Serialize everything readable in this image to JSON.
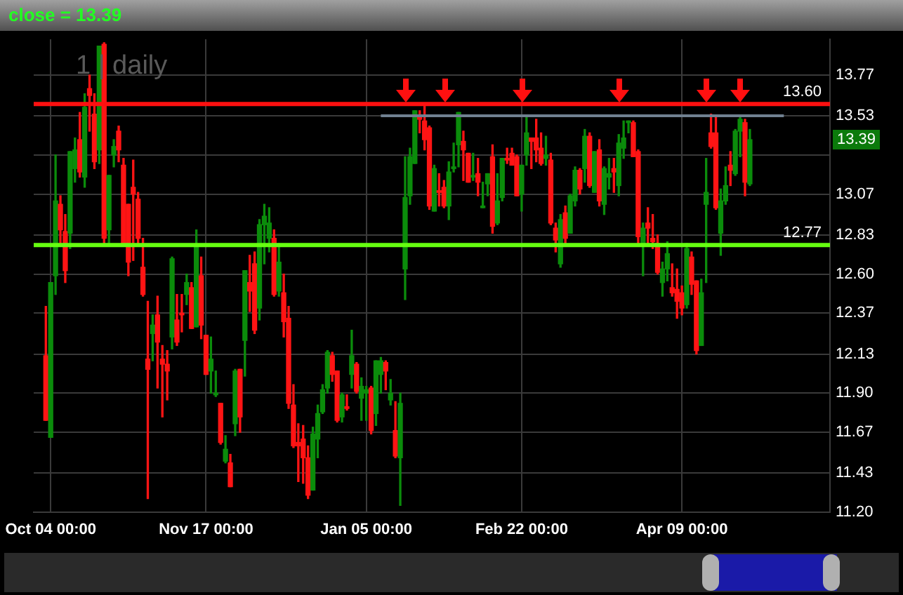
{
  "chart_data": {
    "type": "candlestick",
    "title": "close = 13.39",
    "annotations": [
      "1 | daily",
      {
        "text": "13.39",
        "y": 13.39
      }
    ],
    "categories": [
      null,
      null,
      null,
      "Oct 04 00:00",
      null,
      null,
      null,
      null,
      null,
      null,
      null,
      null,
      null,
      null,
      null,
      null,
      null,
      null,
      null,
      null,
      null,
      null,
      null,
      null,
      null,
      null,
      null,
      null,
      null,
      null,
      null,
      null,
      null,
      null,
      null,
      "Nov 17 00:00",
      null,
      null,
      null,
      null,
      null,
      null,
      null,
      null,
      null,
      null,
      null,
      null,
      null,
      null,
      null,
      null,
      null,
      null,
      null,
      null,
      null,
      null,
      null,
      null,
      null,
      null,
      null,
      null,
      null,
      null,
      null,
      null,
      "Jan 05 00:00",
      null,
      null,
      null,
      null,
      null,
      null,
      null,
      null,
      null,
      null,
      null,
      null,
      null,
      null,
      null,
      null,
      null,
      null,
      null,
      null,
      null,
      null,
      null,
      null,
      null,
      null,
      null,
      null,
      null,
      null,
      null,
      "Feb 22 00:00",
      null,
      null,
      null,
      null,
      null,
      null,
      null,
      null,
      null,
      null,
      null,
      null,
      null,
      null,
      null,
      null,
      null,
      null,
      null,
      null,
      null,
      null,
      null,
      null,
      null,
      null,
      null,
      null,
      null,
      null,
      null,
      null,
      "Apr 09 00:00",
      null,
      null,
      null,
      null,
      null,
      null,
      null,
      null,
      null,
      null,
      null,
      null,
      null,
      null,
      null,
      null,
      null,
      null,
      null,
      null,
      null,
      null,
      null,
      null,
      null,
      null,
      null,
      null,
      null,
      null
    ],
    "ohlc": [
      null,
      null,
      [
        12.12,
        12.41,
        11.74,
        11.74
      ],
      [
        11.64,
        12.55,
        11.64,
        12.55
      ],
      [
        12.59,
        13.3,
        12.48,
        13.03
      ],
      [
        13.01,
        13.06,
        12.78,
        12.86
      ],
      [
        12.85,
        12.95,
        12.55,
        12.62
      ],
      [
        12.84,
        13.32,
        12.75,
        13.32
      ],
      [
        13.22,
        13.4,
        13.14,
        13.33
      ],
      [
        13.39,
        13.55,
        13.17,
        13.2
      ],
      [
        13.17,
        13.66,
        13.11,
        13.58
      ],
      [
        13.69,
        13.77,
        13.44,
        13.65
      ],
      [
        13.54,
        13.66,
        13.22,
        13.26
      ],
      [
        13.33,
        13.94,
        13.25,
        13.94
      ],
      [
        13.95,
        13.96,
        12.78,
        12.81
      ],
      [
        12.86,
        13.18,
        12.78,
        13.18
      ],
      [
        13.3,
        13.39,
        13.23,
        13.35
      ],
      [
        13.44,
        13.47,
        13.26,
        13.33
      ],
      [
        13.24,
        13.28,
        12.78,
        12.78
      ],
      [
        13.01,
        13.01,
        12.59,
        12.67
      ],
      [
        13.11,
        13.27,
        12.68,
        13.07
      ],
      [
        13.04,
        13.08,
        12.78,
        12.81
      ],
      [
        12.64,
        12.81,
        12.47,
        12.48
      ],
      [
        12.1,
        12.44,
        11.28,
        12.04
      ],
      [
        12.25,
        12.36,
        12.09,
        12.3
      ],
      [
        12.36,
        12.47,
        11.93,
        12.2
      ],
      [
        12.1,
        12.18,
        11.76,
        12.07
      ],
      [
        12.07,
        12.15,
        11.86,
        12.03
      ],
      [
        12.23,
        12.7,
        12.16,
        12.69
      ],
      [
        12.33,
        12.48,
        12.18,
        12.2
      ],
      [
        12.37,
        12.48,
        12.26,
        12.36
      ],
      [
        12.48,
        12.6,
        12.42,
        12.55
      ],
      [
        12.52,
        12.55,
        12.28,
        12.28
      ],
      [
        12.29,
        12.86,
        12.29,
        12.76
      ],
      [
        12.59,
        12.7,
        12.22,
        12.3
      ],
      [
        12.24,
        12.24,
        12.01,
        12.01
      ],
      [
        12.03,
        12.23,
        11.9,
        12.1
      ],
      [
        11.89,
        12.03,
        11.88,
        11.9
      ],
      [
        11.84,
        11.84,
        11.6,
        11.61
      ],
      [
        11.5,
        11.65,
        11.49,
        11.57
      ],
      [
        11.49,
        11.54,
        11.35,
        11.35
      ],
      [
        11.72,
        12.04,
        11.65,
        12.03
      ],
      [
        12.04,
        12.04,
        11.67,
        11.76
      ],
      [
        12.21,
        12.62,
        12.0,
        12.62
      ],
      [
        12.55,
        12.71,
        12.38,
        12.5
      ],
      [
        12.66,
        12.73,
        12.25,
        12.27
      ],
      [
        12.4,
        12.92,
        12.33,
        12.89
      ],
      [
        12.89,
        13.01,
        12.66,
        12.94
      ],
      [
        12.81,
        12.99,
        12.73,
        12.9
      ],
      [
        12.81,
        12.86,
        12.47,
        12.48
      ],
      [
        12.5,
        12.78,
        12.47,
        12.67
      ],
      [
        12.49,
        12.6,
        12.23,
        12.32
      ],
      [
        12.34,
        12.41,
        11.81,
        11.84
      ],
      [
        11.83,
        11.95,
        11.58,
        11.59
      ],
      [
        11.61,
        11.72,
        11.38,
        11.59
      ],
      [
        11.63,
        11.71,
        11.37,
        11.52
      ],
      [
        11.52,
        11.59,
        11.28,
        11.3
      ],
      [
        11.33,
        11.7,
        11.33,
        11.66
      ],
      [
        11.63,
        11.83,
        11.52,
        11.78
      ],
      [
        11.79,
        11.95,
        11.78,
        11.92
      ],
      [
        11.93,
        12.15,
        11.9,
        12.14
      ],
      [
        12.12,
        12.14,
        11.97,
        12.01
      ],
      [
        12.03,
        12.03,
        11.73,
        11.74
      ],
      [
        11.76,
        11.9,
        11.73,
        11.89
      ],
      [
        11.82,
        11.89,
        11.8,
        11.81
      ],
      [
        12.01,
        12.27,
        11.93,
        12.12
      ],
      [
        12.07,
        12.08,
        11.9,
        11.91
      ],
      [
        11.87,
        11.99,
        11.74,
        11.94
      ],
      [
        11.9,
        11.94,
        11.74,
        11.92
      ],
      [
        11.93,
        11.94,
        11.66,
        11.68
      ],
      [
        11.78,
        12.09,
        11.71,
        12.09
      ],
      [
        12.01,
        12.11,
        11.9,
        12.09
      ],
      [
        12.08,
        12.09,
        11.92,
        12.03
      ],
      [
        11.86,
        11.98,
        11.83,
        11.9
      ],
      [
        11.68,
        11.85,
        11.52,
        11.53
      ],
      [
        11.52,
        11.9,
        11.24,
        11.84
      ],
      [
        12.63,
        13.29,
        12.45,
        13.05
      ],
      [
        13.06,
        13.34,
        13.01,
        13.29
      ],
      [
        13.25,
        13.56,
        13.25,
        13.56
      ],
      [
        13.53,
        13.56,
        13.43,
        13.51
      ],
      [
        13.5,
        13.59,
        13.33,
        13.39
      ],
      [
        13.46,
        13.47,
        12.98,
        13.0
      ],
      [
        12.97,
        13.24,
        12.97,
        13.22
      ],
      [
        13.09,
        13.19,
        13.0,
        13.08
      ],
      [
        13.11,
        13.15,
        12.99,
        13.0
      ],
      [
        13.0,
        13.26,
        12.92,
        13.2
      ],
      [
        13.22,
        13.37,
        13.2,
        13.23
      ],
      [
        13.36,
        13.55,
        13.23,
        13.55
      ],
      [
        13.38,
        13.44,
        13.15,
        13.33
      ],
      [
        13.31,
        13.31,
        13.14,
        13.14
      ],
      [
        13.17,
        13.31,
        13.15,
        13.18
      ],
      [
        13.19,
        13.28,
        13.06,
        13.14
      ],
      [
        12.99,
        13.14,
        12.99,
        13.0
      ],
      [
        13.13,
        13.19,
        13.06,
        13.19
      ],
      [
        13.29,
        13.36,
        12.84,
        12.88
      ],
      [
        12.9,
        13.19,
        12.89,
        13.03
      ],
      [
        13.05,
        13.28,
        13.03,
        13.28
      ],
      [
        13.28,
        13.34,
        13.25,
        13.27
      ],
      [
        13.31,
        13.34,
        13.24,
        13.24
      ],
      [
        13.29,
        13.3,
        13.06,
        13.06
      ],
      [
        13.07,
        13.24,
        12.97,
        13.24
      ],
      [
        13.3,
        13.52,
        13.24,
        13.43
      ],
      [
        13.4,
        13.4,
        13.22,
        13.38
      ],
      [
        13.4,
        13.51,
        13.26,
        13.33
      ],
      [
        13.34,
        13.43,
        13.24,
        13.25
      ],
      [
        13.28,
        13.41,
        13.24,
        13.3
      ],
      [
        13.27,
        13.31,
        12.89,
        12.9
      ],
      [
        12.87,
        12.9,
        12.73,
        12.8
      ],
      [
        12.66,
        12.95,
        12.64,
        12.92
      ],
      [
        12.96,
        13.0,
        12.77,
        12.81
      ],
      [
        12.84,
        13.07,
        12.84,
        13.06
      ],
      [
        13.03,
        13.23,
        13.0,
        13.21
      ],
      [
        13.21,
        13.22,
        13.07,
        13.1
      ],
      [
        13.22,
        13.45,
        13.14,
        13.41
      ],
      [
        13.41,
        13.43,
        13.11,
        13.12
      ],
      [
        13.08,
        13.32,
        13.08,
        13.32
      ],
      [
        13.33,
        13.39,
        13.0,
        13.03
      ],
      [
        13.01,
        13.23,
        12.95,
        13.22
      ],
      [
        13.17,
        13.28,
        13.1,
        13.19
      ],
      [
        13.22,
        13.28,
        13.08,
        13.2
      ],
      [
        13.12,
        13.42,
        13.06,
        13.37
      ],
      [
        13.34,
        13.5,
        13.28,
        13.4
      ],
      [
        13.49,
        13.5,
        13.43,
        13.5
      ],
      [
        13.49,
        13.5,
        13.29,
        13.29
      ],
      [
        13.32,
        13.33,
        12.78,
        12.82
      ],
      [
        12.78,
        12.9,
        12.59,
        12.87
      ],
      [
        12.9,
        12.99,
        12.78,
        12.87
      ],
      [
        12.81,
        12.95,
        12.75,
        12.79
      ],
      [
        12.78,
        12.83,
        12.6,
        12.61
      ],
      [
        12.55,
        12.67,
        12.47,
        12.63
      ],
      [
        12.63,
        12.79,
        12.56,
        12.72
      ],
      [
        12.52,
        12.66,
        12.47,
        12.49
      ],
      [
        12.51,
        12.63,
        12.34,
        12.44
      ],
      [
        12.49,
        12.53,
        12.36,
        12.4
      ],
      [
        12.42,
        12.78,
        12.4,
        12.75
      ],
      [
        12.7,
        12.73,
        12.48,
        12.54
      ],
      [
        12.56,
        12.56,
        12.13,
        12.15
      ],
      [
        12.18,
        12.57,
        12.18,
        12.49
      ],
      [
        13.01,
        13.28,
        12.55,
        13.08
      ],
      [
        13.43,
        13.54,
        13.34,
        13.35
      ],
      [
        13.43,
        13.52,
        12.98,
        12.99
      ],
      [
        12.84,
        13.1,
        12.71,
        13.03
      ],
      [
        13.03,
        13.23,
        13.01,
        13.12
      ],
      [
        13.24,
        13.32,
        13.12,
        13.21
      ],
      [
        13.19,
        13.45,
        13.18,
        13.44
      ],
      [
        13.44,
        13.52,
        13.29,
        13.51
      ],
      [
        13.49,
        13.51,
        13.06,
        13.14
      ],
      [
        13.13,
        13.45,
        13.12,
        13.39
      ],
      null,
      null,
      null,
      null,
      null,
      null,
      null,
      null,
      null,
      null,
      null,
      null,
      null,
      null,
      null,
      null
    ],
    "series": [
      {
        "type": "line",
        "color": "#708090",
        "values": [
          null,
          null,
          null,
          null,
          null,
          null,
          null,
          null,
          null,
          null,
          null,
          null,
          null,
          null,
          null,
          null,
          null,
          null,
          null,
          null,
          null,
          null,
          null,
          null,
          null,
          null,
          null,
          null,
          null,
          null,
          null,
          null,
          null,
          null,
          null,
          null,
          null,
          null,
          null,
          null,
          null,
          null,
          null,
          null,
          null,
          null,
          null,
          null,
          null,
          null,
          null,
          null,
          null,
          null,
          null,
          null,
          null,
          null,
          null,
          null,
          null,
          null,
          null,
          null,
          null,
          null,
          null,
          null,
          null,
          null,
          null,
          13.53,
          null,
          null,
          null,
          null,
          null,
          null,
          null,
          null,
          null,
          null,
          null,
          null,
          null,
          null,
          null,
          null,
          null,
          null,
          null,
          null,
          null,
          null,
          null,
          null,
          null,
          null,
          null,
          null,
          null,
          null,
          null,
          null,
          null,
          null,
          null,
          null,
          null,
          null,
          null,
          null,
          null,
          null,
          null,
          null,
          null,
          null,
          null,
          null,
          null,
          null,
          null,
          null,
          null,
          null,
          null,
          null,
          null,
          null,
          null,
          null,
          null,
          null,
          null,
          null,
          null,
          null,
          null,
          null,
          null,
          null,
          null,
          null,
          null,
          null,
          null,
          null,
          null,
          null,
          null,
          null,
          null,
          null,
          13.53,
          null,
          null,
          null,
          null,
          null,
          null,
          null,
          null,
          null
        ]
      }
    ],
    "ylim": [
      11.2,
      13.98
    ],
    "yticks": [
      13.77,
      13.53,
      {
        "value": 13.3,
        "label": null
      },
      13.07,
      12.83,
      {
        "value": 12.6,
        "label": "12.60"
      },
      12.37,
      12.13,
      {
        "value": 11.9,
        "label": "11.90"
      },
      11.67,
      11.43,
      {
        "value": 11.2,
        "label": "11.20"
      }
    ],
    "ref_lines": [
      {
        "axis": "y",
        "value": 13.6,
        "label": "13.60",
        "color": "#ff1010"
      },
      {
        "axis": "y",
        "value": 12.77,
        "label": "12.77",
        "color": "#66ff10"
      }
    ],
    "grid": true
  }
}
